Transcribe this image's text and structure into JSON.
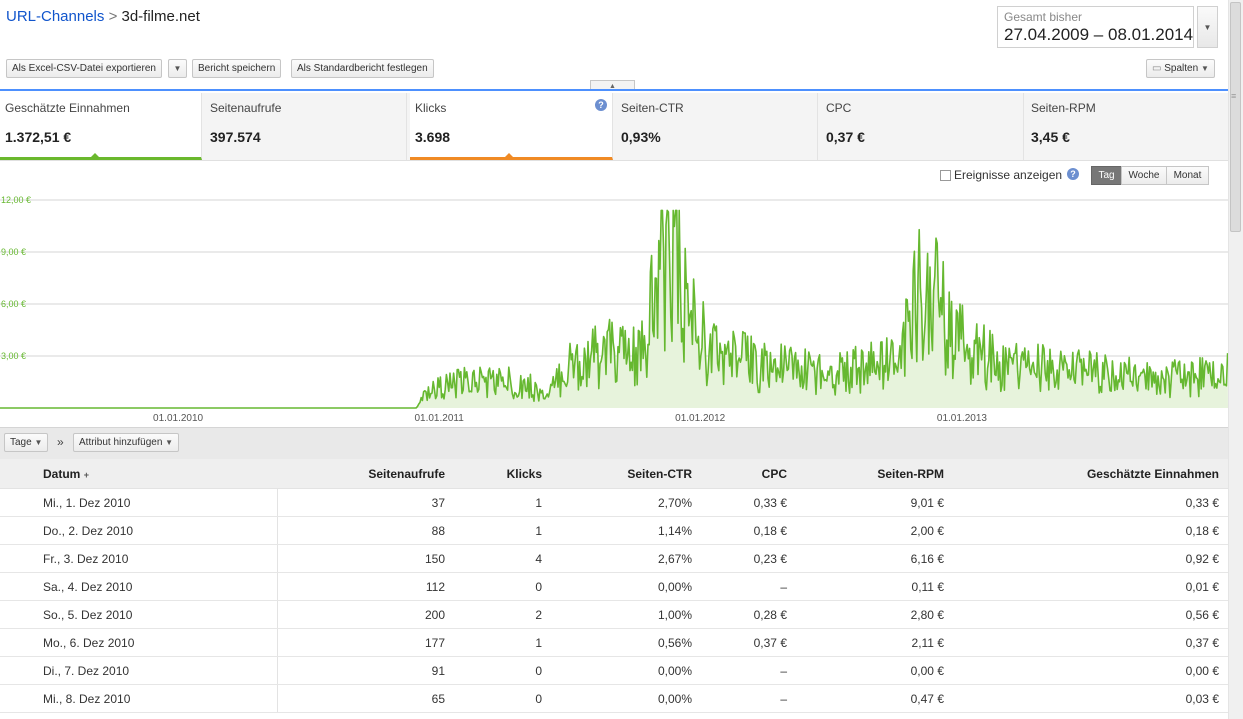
{
  "header": {
    "breadcrumb_root": "URL-Channels",
    "breadcrumb_sep": ">",
    "breadcrumb_current": "3d-filme.net",
    "date_label": "Gesamt bisher",
    "date_value": "27.04.2009 – 08.01.2014"
  },
  "toolbar": {
    "export_label": "Als Excel-CSV-Datei exportieren",
    "save_label": "Bericht speichern",
    "default_label": "Als Standardbericht festlegen",
    "columns_label": "Spalten"
  },
  "metrics": [
    {
      "label": "Geschätzte Einnahmen",
      "value": "1.372,51 €"
    },
    {
      "label": "Seitenaufrufe",
      "value": "397.574"
    },
    {
      "label": "Klicks",
      "value": "3.698"
    },
    {
      "label": "Seiten-CTR",
      "value": "0,93%"
    },
    {
      "label": "CPC",
      "value": "0,37 €"
    },
    {
      "label": "Seiten-RPM",
      "value": "3,45 €"
    }
  ],
  "chart_controls": {
    "events_label": "Ereignisse anzeigen",
    "period_day": "Tag",
    "period_week": "Woche",
    "period_month": "Monat",
    "active_period": "Tag"
  },
  "chart_data": {
    "type": "area",
    "color": "#66b830",
    "ylim": [
      0,
      12
    ],
    "y_ticks": [
      "12,00 €",
      "9,00 €",
      "6,00 €",
      "3,00 €"
    ],
    "x_ticks": [
      "01.01.2010",
      "01.01.2011",
      "01.01.2012",
      "01.01.2013"
    ],
    "x_start": "2009-04-27",
    "x_end": "2014-01-08",
    "grid": true,
    "series": [
      {
        "name": "Geschätzte Einnahmen",
        "values": [
          {
            "date": "2009-04-27",
            "value": 0
          },
          {
            "date": "2010-11-30",
            "value": 0
          },
          {
            "date": "2010-12-10",
            "value": 0.8
          },
          {
            "date": "2011-01-01",
            "value": 1.2
          },
          {
            "date": "2011-03-01",
            "value": 1.6
          },
          {
            "date": "2011-05-01",
            "value": 1.4
          },
          {
            "date": "2011-06-01",
            "value": 0.6
          },
          {
            "date": "2011-07-01",
            "value": 2.5
          },
          {
            "date": "2011-09-01",
            "value": 3.2
          },
          {
            "date": "2011-10-10",
            "value": 2.8
          },
          {
            "date": "2011-11-01",
            "value": 6.5
          },
          {
            "date": "2011-11-20",
            "value": 10.7
          },
          {
            "date": "2011-12-10",
            "value": 6.0
          },
          {
            "date": "2012-01-15",
            "value": 3.2
          },
          {
            "date": "2012-04-01",
            "value": 2.4
          },
          {
            "date": "2012-07-01",
            "value": 2.0
          },
          {
            "date": "2012-10-01",
            "value": 2.6
          },
          {
            "date": "2012-11-15",
            "value": 7.8
          },
          {
            "date": "2012-12-15",
            "value": 4.0
          },
          {
            "date": "2013-03-01",
            "value": 2.4
          },
          {
            "date": "2013-07-01",
            "value": 2.0
          },
          {
            "date": "2013-10-01",
            "value": 1.6
          },
          {
            "date": "2014-01-08",
            "value": 2.0
          }
        ]
      }
    ]
  },
  "table_toolbar": {
    "days_label": "Tage",
    "arrow": "»",
    "attr_label": "Attribut hinzufügen"
  },
  "table": {
    "headers": [
      "Datum",
      "Seitenaufrufe",
      "Klicks",
      "Seiten-CTR",
      "CPC",
      "Seiten-RPM",
      "Geschätzte Einnahmen"
    ],
    "sort_indicator": "+",
    "rows": [
      [
        "Mi., 1. Dez 2010",
        "37",
        "1",
        "2,70%",
        "0,33 €",
        "9,01 €",
        "0,33 €"
      ],
      [
        "Do., 2. Dez 2010",
        "88",
        "1",
        "1,14%",
        "0,18 €",
        "2,00 €",
        "0,18 €"
      ],
      [
        "Fr., 3. Dez 2010",
        "150",
        "4",
        "2,67%",
        "0,23 €",
        "6,16 €",
        "0,92 €"
      ],
      [
        "Sa., 4. Dez 2010",
        "112",
        "0",
        "0,00%",
        "–",
        "0,11 €",
        "0,01 €"
      ],
      [
        "So., 5. Dez 2010",
        "200",
        "2",
        "1,00%",
        "0,28 €",
        "2,80 €",
        "0,56 €"
      ],
      [
        "Mo., 6. Dez 2010",
        "177",
        "1",
        "0,56%",
        "0,37 €",
        "2,11 €",
        "0,37 €"
      ],
      [
        "Di., 7. Dez 2010",
        "91",
        "0",
        "0,00%",
        "–",
        "0,00 €",
        "0,00 €"
      ],
      [
        "Mi., 8. Dez 2010",
        "65",
        "0",
        "0,00%",
        "–",
        "0,47 €",
        "0,03 €"
      ]
    ]
  }
}
